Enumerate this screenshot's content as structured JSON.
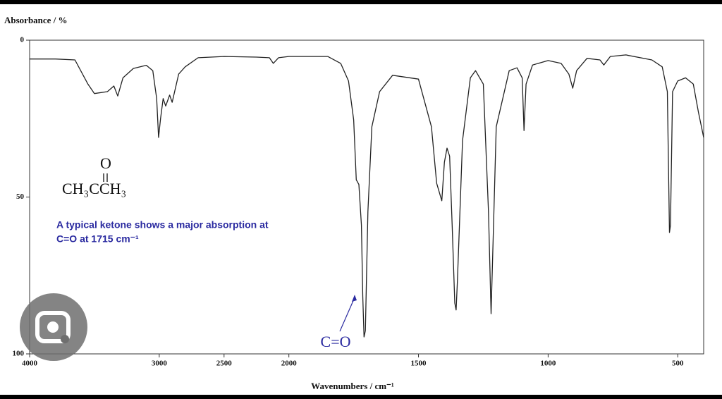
{
  "chart_data": {
    "type": "line",
    "ylabel": "Absorbance / %",
    "xlabel": "Wavenumbers / cm⁻¹",
    "x": [
      4000,
      3800,
      3650,
      3550,
      3500,
      3400,
      3350,
      3320,
      3280,
      3200,
      3100,
      3050,
      3020,
      3005,
      2990,
      2970,
      2950,
      2920,
      2900,
      2850,
      2800,
      2700,
      2500,
      2250,
      2150,
      2120,
      2080,
      2000,
      1850,
      1800,
      1770,
      1750,
      1740,
      1730,
      1720,
      1715,
      1710,
      1705,
      1695,
      1680,
      1650,
      1600,
      1500,
      1450,
      1430,
      1410,
      1400,
      1390,
      1380,
      1370,
      1360,
      1355,
      1350,
      1330,
      1300,
      1280,
      1250,
      1230,
      1220,
      1215,
      1200,
      1150,
      1120,
      1100,
      1093,
      1085,
      1060,
      1000,
      950,
      920,
      905,
      890,
      850,
      800,
      785,
      760,
      700,
      600,
      560,
      540,
      532,
      528,
      520,
      500,
      470,
      440,
      420,
      400
    ],
    "values": [
      6,
      6,
      6.3,
      14,
      17,
      16.4,
      14.6,
      17.8,
      12,
      9,
      8,
      9.7,
      18.6,
      31,
      25,
      18.6,
      21,
      17.5,
      19.8,
      10.8,
      8.5,
      5.6,
      5.2,
      5.4,
      5.6,
      7.4,
      5.6,
      5.2,
      5.2,
      7.4,
      13,
      25.4,
      44.5,
      46,
      59,
      81.6,
      94.6,
      92.6,
      54.6,
      27.6,
      16.4,
      11.2,
      12.4,
      27.6,
      45.6,
      51.2,
      38.9,
      34.4,
      37,
      59,
      83.8,
      86,
      77,
      32,
      12,
      9.7,
      14,
      54.6,
      87.2,
      72.6,
      27.6,
      9.7,
      8.8,
      12,
      28.8,
      14,
      7.9,
      6.5,
      7.4,
      10.8,
      15.3,
      9.7,
      5.8,
      6.3,
      7.9,
      5.2,
      4.7,
      6.3,
      8.5,
      16.4,
      61.3,
      59,
      16.4,
      13,
      12,
      14,
      23,
      31
    ],
    "color": "#222222",
    "xlim": [
      4000,
      400
    ],
    "x_scale_break": {
      "at": 2000,
      "factor": 2
    },
    "xticks": [
      4000,
      3000,
      2500,
      2000,
      1500,
      1000,
      500
    ],
    "ylim": [
      100,
      0
    ],
    "yticks": [
      0,
      50,
      100
    ],
    "structure": {
      "top": "O",
      "formula": "CH₃CCH₃"
    },
    "annotation": [
      "A typical ketone shows a major absorption at",
      "C=O at 1715 cm⁻¹"
    ],
    "peak_label": "C=O"
  }
}
